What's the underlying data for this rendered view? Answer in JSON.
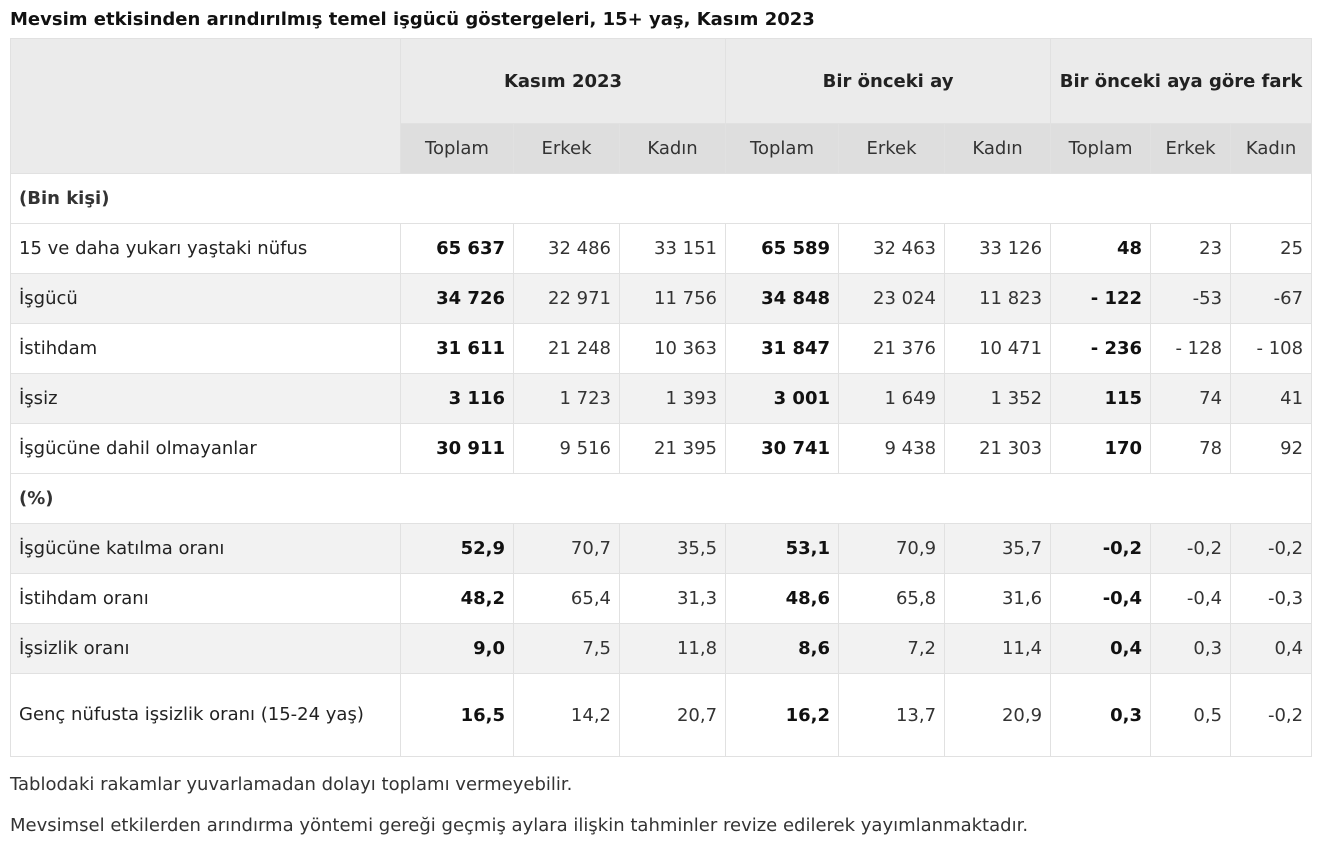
{
  "title": "Mevsim etkisinden arındırılmış temel işgücü göstergeleri, 15+ yaş, Kasım 2023",
  "table": {
    "groups": [
      "Kasım 2023",
      "Bir önceki ay",
      "Bir önceki aya göre fark"
    ],
    "subheaders": [
      "Toplam",
      "Erkek",
      "Kadın",
      "Toplam",
      "Erkek",
      "Kadın",
      "Toplam",
      "Erkek",
      "Kadın"
    ],
    "sections": [
      {
        "label": "(Bin kişi)",
        "rows": [
          {
            "label": "15 ve daha yukarı yaştaki nüfus",
            "values": [
              "65 637",
              "32 486",
              "33 151",
              "65 589",
              "32 463",
              "33 126",
              "48",
              "23",
              "25"
            ]
          },
          {
            "label": "İşgücü",
            "values": [
              "34 726",
              "22 971",
              "11 756",
              "34 848",
              "23 024",
              "11 823",
              "- 122",
              "-53",
              "-67"
            ]
          },
          {
            "label": "İstihdam",
            "values": [
              "31 611",
              "21 248",
              "10 363",
              "31 847",
              "21 376",
              "10 471",
              "- 236",
              "- 128",
              "- 108"
            ]
          },
          {
            "label": "İşsiz",
            "values": [
              "3 116",
              "1 723",
              "1 393",
              "3 001",
              "1 649",
              "1 352",
              "115",
              "74",
              "41"
            ]
          },
          {
            "label": "İşgücüne dahil olmayanlar",
            "values": [
              "30 911",
              "9 516",
              "21 395",
              "30 741",
              "9 438",
              "21 303",
              "170",
              "78",
              "92"
            ]
          }
        ]
      },
      {
        "label": "(%)",
        "rows": [
          {
            "label": "İşgücüne katılma oranı",
            "values": [
              "52,9",
              "70,7",
              "35,5",
              "53,1",
              "70,9",
              "35,7",
              "-0,2",
              "-0,2",
              "-0,2"
            ]
          },
          {
            "label": "İstihdam oranı",
            "values": [
              "48,2",
              "65,4",
              "31,3",
              "48,6",
              "65,8",
              "31,6",
              "-0,4",
              "-0,4",
              "-0,3"
            ]
          },
          {
            "label": "İşsizlik oranı",
            "values": [
              "9,0",
              "7,5",
              "11,8",
              "8,6",
              "7,2",
              "11,4",
              "0,4",
              "0,3",
              "0,4"
            ]
          },
          {
            "label": "Genç nüfusta işsizlik oranı (15-24 yaş)",
            "values": [
              "16,5",
              "14,2",
              "20,7",
              "16,2",
              "13,7",
              "20,9",
              "0,3",
              "0,5",
              "-0,2"
            ]
          }
        ]
      }
    ]
  },
  "notes": [
    "Tablodaki rakamlar yuvarlamadan dolayı toplamı vermeyebilir.",
    "Mevsimsel etkilerden arındırma yöntemi gereği geçmiş aylara ilişkin tahminler revize edilerek yayımlanmaktadır."
  ]
}
